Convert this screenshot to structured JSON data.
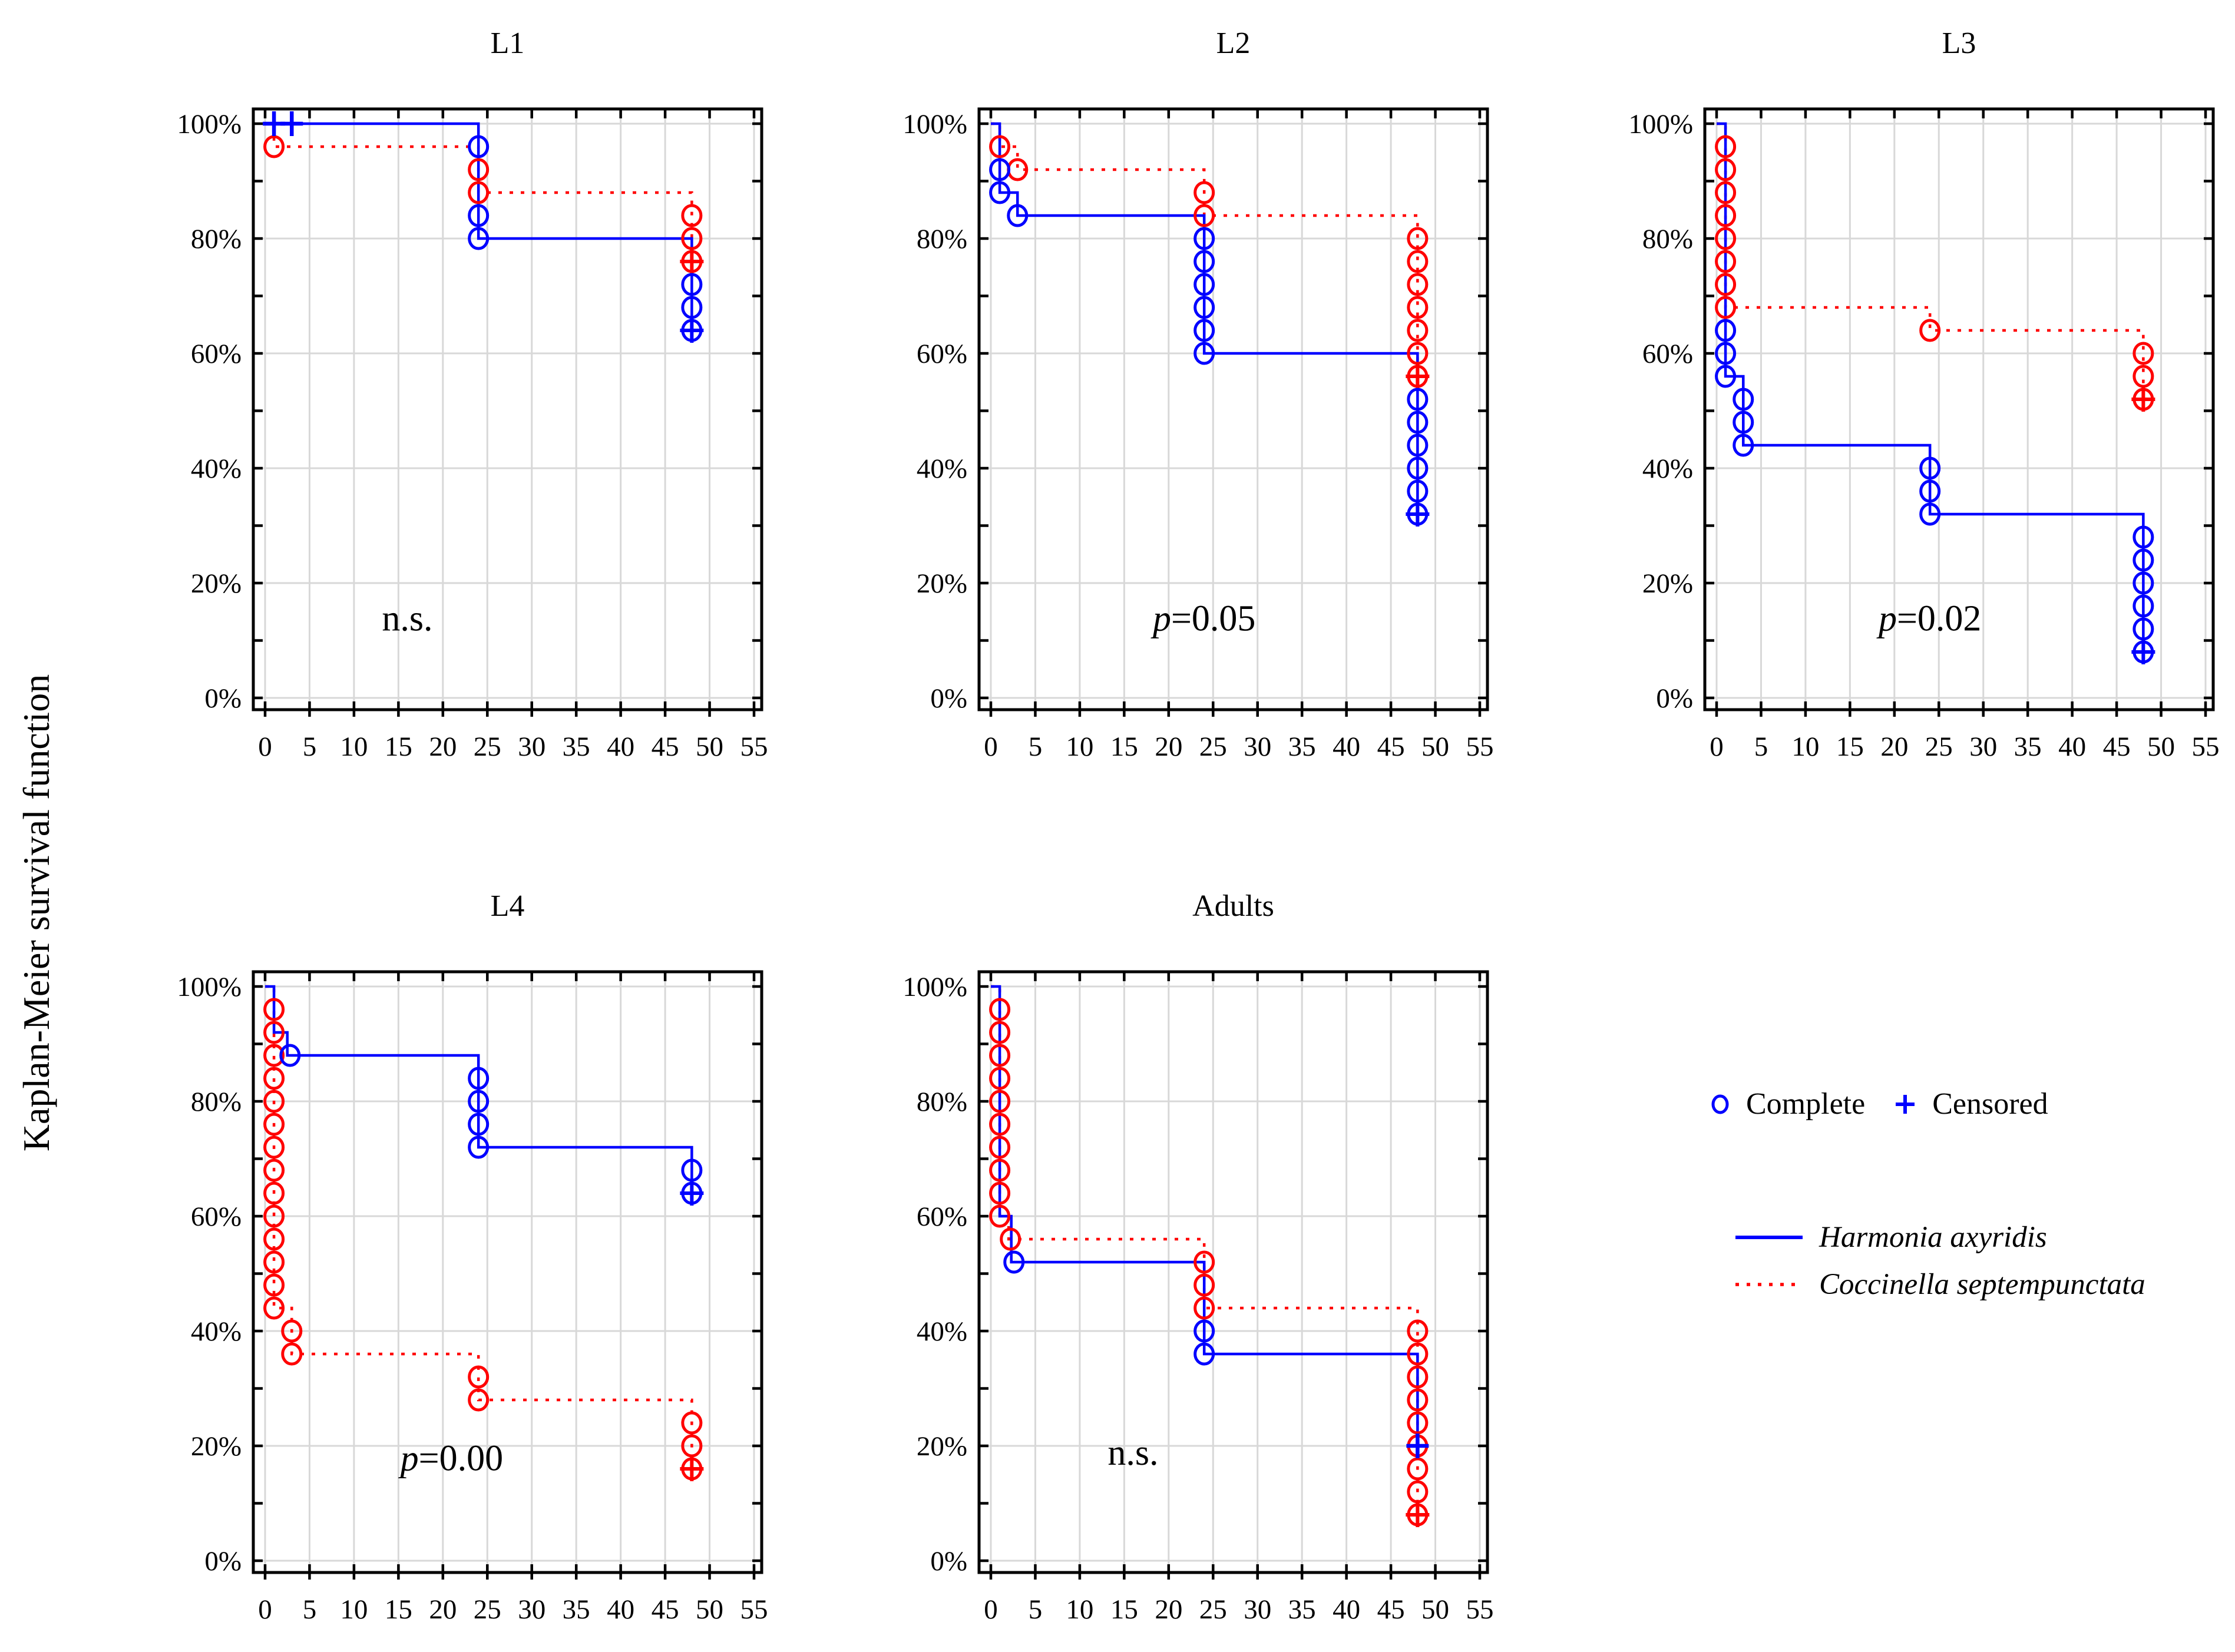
{
  "figure": {
    "ylabel": "Kaplan-Meier survival function",
    "legend": {
      "complete_label": "Complete",
      "censored_label": "Censored",
      "series": [
        {
          "name": "Harmonia axyridis",
          "line": "solid",
          "color_key": "harmonia"
        },
        {
          "name": "Coccinella septempunctata",
          "line": "dotted",
          "color_key": "coccinella"
        }
      ]
    },
    "colors": {
      "harmonia": "#0000ff",
      "coccinella": "#ff0000",
      "grid": "#d8d8d8",
      "frame": "#000000",
      "text": "#000000",
      "background": "#ffffff"
    }
  },
  "axes": {
    "x": {
      "min": 0,
      "max": 55,
      "tick_step": 5,
      "tick_labels": [
        "0",
        "5",
        "10",
        "15",
        "20",
        "25",
        "30",
        "35",
        "40",
        "45",
        "50",
        "55"
      ]
    },
    "y": {
      "min": 0,
      "max": 100,
      "tick_step": 20,
      "minor_step": 10,
      "tick_labels": [
        "0%",
        "20%",
        "40%",
        "60%",
        "80%",
        "100%"
      ]
    }
  },
  "chart_data": [
    {
      "type": "kaplan-meier-step",
      "id": "L1",
      "title": "L1",
      "row": 0,
      "col": 0,
      "annotation": {
        "italic": "",
        "text": "n.s.",
        "x": 16,
        "y": 14
      },
      "series": [
        {
          "species": "Coccinella septempunctata",
          "color_key": "coccinella",
          "line": "dotted",
          "steps": [
            [
              0,
              100
            ],
            [
              1,
              100
            ],
            [
              1,
              96
            ],
            [
              24,
              96
            ],
            [
              24,
              88
            ],
            [
              48,
              88
            ],
            [
              48,
              76
            ]
          ],
          "complete": [
            [
              1,
              96
            ],
            [
              24,
              92
            ],
            [
              24,
              88
            ],
            [
              48,
              84
            ],
            [
              48,
              80
            ]
          ],
          "censored": [],
          "censored_complete": [
            [
              48,
              76
            ]
          ]
        },
        {
          "species": "Harmonia axyridis",
          "color_key": "harmonia",
          "line": "solid",
          "steps": [
            [
              0,
              100
            ],
            [
              24,
              100
            ],
            [
              24,
              80
            ],
            [
              48,
              80
            ],
            [
              48,
              64
            ]
          ],
          "complete": [
            [
              24,
              96
            ],
            [
              24,
              84
            ],
            [
              24,
              80
            ],
            [
              48,
              72
            ],
            [
              48,
              68
            ]
          ],
          "censored": [
            [
              1,
              100
            ],
            [
              3,
              100
            ]
          ],
          "censored_complete": [
            [
              48,
              64
            ]
          ]
        }
      ]
    },
    {
      "type": "kaplan-meier-step",
      "id": "L2",
      "title": "L2",
      "row": 0,
      "col": 1,
      "annotation": {
        "italic": "p",
        "text": "=0.05",
        "x": 24,
        "y": 14
      },
      "series": [
        {
          "species": "Coccinella septempunctata",
          "color_key": "coccinella",
          "line": "dotted",
          "steps": [
            [
              0,
              100
            ],
            [
              1,
              100
            ],
            [
              1,
              96
            ],
            [
              3,
              96
            ],
            [
              3,
              92
            ],
            [
              24,
              92
            ],
            [
              24,
              84
            ],
            [
              48,
              84
            ],
            [
              48,
              56
            ]
          ],
          "complete": [
            [
              1,
              96
            ],
            [
              3,
              92
            ],
            [
              24,
              88
            ],
            [
              24,
              84
            ],
            [
              48,
              80
            ],
            [
              48,
              76
            ],
            [
              48,
              72
            ],
            [
              48,
              68
            ],
            [
              48,
              64
            ],
            [
              48,
              60
            ]
          ],
          "censored": [],
          "censored_complete": [
            [
              48,
              56
            ]
          ]
        },
        {
          "species": "Harmonia axyridis",
          "color_key": "harmonia",
          "line": "solid",
          "steps": [
            [
              0,
              100
            ],
            [
              1,
              100
            ],
            [
              1,
              88
            ],
            [
              3,
              88
            ],
            [
              3,
              84
            ],
            [
              24,
              84
            ],
            [
              24,
              60
            ],
            [
              48,
              60
            ],
            [
              48,
              32
            ]
          ],
          "complete": [
            [
              1,
              92
            ],
            [
              1,
              88
            ],
            [
              3,
              84
            ],
            [
              24,
              80
            ],
            [
              24,
              76
            ],
            [
              24,
              72
            ],
            [
              24,
              68
            ],
            [
              24,
              64
            ],
            [
              24,
              60
            ],
            [
              48,
              52
            ],
            [
              48,
              48
            ],
            [
              48,
              44
            ],
            [
              48,
              40
            ],
            [
              48,
              36
            ]
          ],
          "censored": [],
          "censored_complete": [
            [
              48,
              32
            ]
          ]
        }
      ]
    },
    {
      "type": "kaplan-meier-step",
      "id": "L3",
      "title": "L3",
      "row": 0,
      "col": 2,
      "annotation": {
        "italic": "p",
        "text": "=0.02",
        "x": 24,
        "y": 14
      },
      "series": [
        {
          "species": "Coccinella septempunctata",
          "color_key": "coccinella",
          "line": "dotted",
          "steps": [
            [
              0,
              100
            ],
            [
              1,
              100
            ],
            [
              1,
              68
            ],
            [
              24,
              68
            ],
            [
              24,
              64
            ],
            [
              48,
              64
            ],
            [
              48,
              52
            ]
          ],
          "complete": [
            [
              1,
              96
            ],
            [
              1,
              92
            ],
            [
              1,
              88
            ],
            [
              1,
              84
            ],
            [
              1,
              80
            ],
            [
              1,
              76
            ],
            [
              1,
              72
            ],
            [
              1,
              68
            ],
            [
              24,
              64
            ],
            [
              48,
              60
            ],
            [
              48,
              56
            ]
          ],
          "censored": [],
          "censored_complete": [
            [
              48,
              52
            ]
          ]
        },
        {
          "species": "Harmonia axyridis",
          "color_key": "harmonia",
          "line": "solid",
          "steps": [
            [
              0,
              100
            ],
            [
              1,
              100
            ],
            [
              1,
              56
            ],
            [
              3,
              56
            ],
            [
              3,
              44
            ],
            [
              24,
              44
            ],
            [
              24,
              32
            ],
            [
              48,
              32
            ],
            [
              48,
              8
            ]
          ],
          "complete": [
            [
              1,
              64
            ],
            [
              1,
              60
            ],
            [
              1,
              56
            ],
            [
              3,
              52
            ],
            [
              3,
              48
            ],
            [
              3,
              44
            ],
            [
              24,
              40
            ],
            [
              24,
              36
            ],
            [
              24,
              32
            ],
            [
              48,
              28
            ],
            [
              48,
              24
            ],
            [
              48,
              20
            ],
            [
              48,
              16
            ],
            [
              48,
              12
            ]
          ],
          "censored": [],
          "censored_complete": [
            [
              48,
              8
            ]
          ]
        }
      ]
    },
    {
      "type": "kaplan-meier-step",
      "id": "L4",
      "title": "L4",
      "row": 1,
      "col": 0,
      "annotation": {
        "italic": "p",
        "text": "=0.00",
        "x": 21,
        "y": 18
      },
      "series": [
        {
          "species": "Coccinella septempunctata",
          "color_key": "coccinella",
          "line": "dotted",
          "steps": [
            [
              0,
              100
            ],
            [
              1,
              100
            ],
            [
              1,
              44
            ],
            [
              3,
              44
            ],
            [
              3,
              36
            ],
            [
              24,
              36
            ],
            [
              24,
              28
            ],
            [
              48,
              28
            ],
            [
              48,
              16
            ]
          ],
          "complete": [
            [
              1,
              96
            ],
            [
              1,
              92
            ],
            [
              1,
              88
            ],
            [
              1,
              84
            ],
            [
              1,
              80
            ],
            [
              1,
              76
            ],
            [
              1,
              72
            ],
            [
              1,
              68
            ],
            [
              1,
              64
            ],
            [
              1,
              60
            ],
            [
              1,
              56
            ],
            [
              1,
              52
            ],
            [
              1,
              48
            ],
            [
              1,
              44
            ],
            [
              3,
              40
            ],
            [
              3,
              36
            ],
            [
              24,
              32
            ],
            [
              24,
              28
            ],
            [
              48,
              24
            ],
            [
              48,
              20
            ]
          ],
          "censored": [],
          "censored_complete": [
            [
              48,
              16
            ]
          ]
        },
        {
          "species": "Harmonia axyridis",
          "color_key": "harmonia",
          "line": "solid",
          "steps": [
            [
              0,
              100
            ],
            [
              1,
              100
            ],
            [
              1,
              92
            ],
            [
              2.5,
              92
            ],
            [
              2.5,
              88
            ],
            [
              24,
              88
            ],
            [
              24,
              72
            ],
            [
              48,
              72
            ],
            [
              48,
              64
            ]
          ],
          "complete": [
            [
              2.8,
              88
            ],
            [
              24,
              84
            ],
            [
              24,
              80
            ],
            [
              24,
              76
            ],
            [
              24,
              72
            ],
            [
              48,
              68
            ]
          ],
          "censored": [],
          "censored_complete": [
            [
              48,
              64
            ]
          ]
        }
      ]
    },
    {
      "type": "kaplan-meier-step",
      "id": "Adults",
      "title": "Adults",
      "row": 1,
      "col": 1,
      "annotation": {
        "italic": "",
        "text": "n.s.",
        "x": 16,
        "y": 19
      },
      "series": [
        {
          "species": "Coccinella septempunctata",
          "color_key": "coccinella",
          "line": "dotted",
          "steps": [
            [
              0,
              100
            ],
            [
              1,
              100
            ],
            [
              1,
              60
            ],
            [
              2,
              60
            ],
            [
              2,
              56
            ],
            [
              24,
              56
            ],
            [
              24,
              44
            ],
            [
              48,
              44
            ],
            [
              48,
              8
            ]
          ],
          "complete": [
            [
              1,
              96
            ],
            [
              1,
              92
            ],
            [
              1,
              88
            ],
            [
              1,
              84
            ],
            [
              1,
              80
            ],
            [
              1,
              76
            ],
            [
              1,
              72
            ],
            [
              1,
              68
            ],
            [
              1,
              64
            ],
            [
              1,
              60
            ],
            [
              2.2,
              56
            ],
            [
              24,
              52
            ],
            [
              24,
              48
            ],
            [
              24,
              44
            ],
            [
              48,
              40
            ],
            [
              48,
              36
            ],
            [
              48,
              32
            ],
            [
              48,
              28
            ],
            [
              48,
              24
            ],
            [
              48,
              20
            ],
            [
              48,
              16
            ],
            [
              48,
              12
            ]
          ],
          "censored": [],
          "censored_complete": [
            [
              48,
              8
            ]
          ]
        },
        {
          "species": "Harmonia axyridis",
          "color_key": "harmonia",
          "line": "solid",
          "steps": [
            [
              0,
              100
            ],
            [
              1,
              100
            ],
            [
              1,
              60
            ],
            [
              2.3,
              60
            ],
            [
              2.3,
              52
            ],
            [
              24,
              52
            ],
            [
              24,
              36
            ],
            [
              48,
              36
            ],
            [
              48,
              20
            ]
          ],
          "complete": [
            [
              2.6,
              52
            ],
            [
              24,
              40
            ],
            [
              24,
              36
            ]
          ],
          "censored": [
            [
              48,
              20
            ]
          ],
          "censored_complete": []
        }
      ]
    }
  ]
}
